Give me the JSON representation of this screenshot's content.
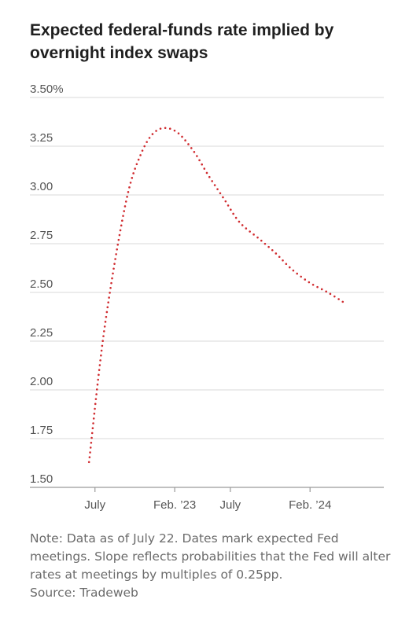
{
  "title": "Expected federal-funds rate implied by overnight index swaps",
  "note": "Note: Data as of July 22. Dates mark expected Fed meetings. Slope reflects probabilities that the Fed will alter rates at meetings by multiples of 0.25pp.",
  "source": "Source: Tradeweb",
  "colors": {
    "series": "#d02b2f",
    "grid": "#d9d9d9",
    "axis": "#9a9a9a",
    "tick_text": "#555555",
    "note_text": "#6b6b6b"
  },
  "chart_data": {
    "type": "line",
    "title": "Expected federal-funds rate implied by overnight index swaps",
    "xlabel": "",
    "ylabel": "",
    "line_style": "dotted",
    "grid": true,
    "y_ticks": [
      {
        "value": 3.5,
        "label": "3.50%"
      },
      {
        "value": 3.25,
        "label": "3.25"
      },
      {
        "value": 3.0,
        "label": "3.00"
      },
      {
        "value": 2.75,
        "label": "2.75"
      },
      {
        "value": 2.5,
        "label": "2.50"
      },
      {
        "value": 2.25,
        "label": "2.25"
      },
      {
        "value": 2.0,
        "label": "2.00"
      },
      {
        "value": 1.75,
        "label": "1.75"
      },
      {
        "value": 1.5,
        "label": "1.50"
      }
    ],
    "ylim": [
      1.5,
      3.5
    ],
    "x_ticks": [
      {
        "date": "2022-07-01",
        "label": "July"
      },
      {
        "date": "2023-02-01",
        "label": "Feb. ’23"
      },
      {
        "date": "2023-07-01",
        "label": "July"
      },
      {
        "date": "2024-02-01",
        "label": "Feb. ’24"
      }
    ],
    "xlim": [
      "2022-05-01",
      "2024-08-01"
    ],
    "series": [
      {
        "color": "#d02b2f",
        "points": [
          {
            "x": "2022-06-15",
            "y": 1.63
          },
          {
            "x": "2022-07-27",
            "y": 2.32
          },
          {
            "x": "2022-09-21",
            "y": 2.95
          },
          {
            "x": "2022-11-02",
            "y": 3.21
          },
          {
            "x": "2022-12-14",
            "y": 3.33
          },
          {
            "x": "2023-02-01",
            "y": 3.33
          },
          {
            "x": "2023-03-22",
            "y": 3.23
          },
          {
            "x": "2023-05-03",
            "y": 3.1
          },
          {
            "x": "2023-06-14",
            "y": 2.98
          },
          {
            "x": "2023-07-26",
            "y": 2.86
          },
          {
            "x": "2023-09-20",
            "y": 2.77
          },
          {
            "x": "2023-11-01",
            "y": 2.7
          },
          {
            "x": "2023-12-13",
            "y": 2.62
          },
          {
            "x": "2024-01-31",
            "y": 2.55
          },
          {
            "x": "2024-03-20",
            "y": 2.5
          },
          {
            "x": "2024-05-01",
            "y": 2.45
          }
        ]
      }
    ]
  }
}
